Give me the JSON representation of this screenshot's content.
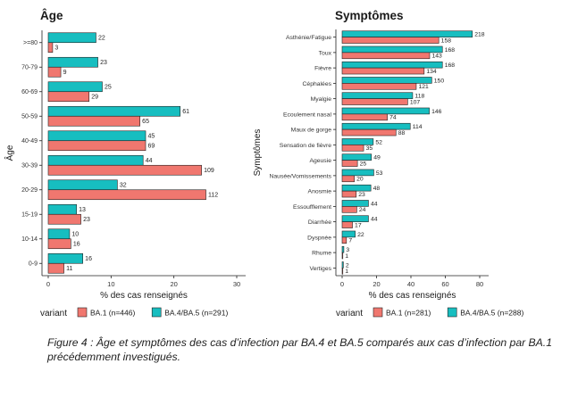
{
  "colors": {
    "ba1": "#F0776F",
    "ba45": "#17BEC0",
    "bar_stroke": "#222222",
    "axis": "#222222",
    "text": "#1a1a1a"
  },
  "chart_data": [
    {
      "type": "bar",
      "orientation": "horizontal",
      "title": "Âge",
      "xlabel": "% des cas renseignés",
      "ylabel": "Âge",
      "xlim": [
        0,
        30
      ],
      "xticks": [
        0,
        10,
        20,
        30
      ],
      "grid": false,
      "categories": [
        ">=80",
        "70-79",
        "60-69",
        "50-59",
        "40-49",
        "30-39",
        "20-29",
        "15-19",
        "10-14",
        "0-9"
      ],
      "series": [
        {
          "name": "BA.4/BA.5 (n=291)",
          "color": "#17BEC0",
          "values": [
            7.6,
            7.9,
            8.6,
            21.0,
            15.5,
            15.1,
            11.0,
            4.5,
            3.4,
            5.5
          ],
          "labels": [
            22,
            23,
            25,
            61,
            45,
            44,
            32,
            13,
            10,
            16
          ]
        },
        {
          "name": "BA.1 (n=446)",
          "color": "#F0776F",
          "values": [
            0.7,
            2.0,
            6.5,
            14.6,
            15.5,
            24.4,
            25.1,
            5.2,
            3.6,
            2.5
          ],
          "labels": [
            3,
            9,
            29,
            65,
            69,
            109,
            112,
            23,
            16,
            11
          ]
        }
      ],
      "legend": {
        "title": "variant",
        "position": "bottom",
        "items": [
          "BA.1 (n=446)",
          "BA.4/BA.5 (n=291)"
        ]
      }
    },
    {
      "type": "bar",
      "orientation": "horizontal",
      "title": "Symptômes",
      "xlabel": "% des cas renseignés",
      "ylabel": "Symptômes",
      "xlim": [
        0,
        80
      ],
      "xticks": [
        0,
        20,
        40,
        60,
        80
      ],
      "grid": false,
      "categories": [
        "Asthénie/Fatigue",
        "Toux",
        "Fièvre",
        "Céphalées",
        "Myalgie",
        "Ecoulement nasal",
        "Maux de gorge",
        "Sensation de fièvre",
        "Ageusie",
        "Nausée/Vomissements",
        "Anosmie",
        "Essoufflement",
        "Diarrhée",
        "Dyspnée",
        "Rhume",
        "Vertiges"
      ],
      "series": [
        {
          "name": "BA.4/BA.5 (n=288)",
          "color": "#17BEC0",
          "values": [
            75.7,
            58.3,
            58.3,
            52.1,
            41.0,
            50.7,
            39.6,
            18.1,
            17.0,
            18.4,
            16.7,
            15.3,
            15.3,
            7.6,
            1.0,
            0.7
          ],
          "labels": [
            218,
            168,
            168,
            150,
            118,
            146,
            114,
            52,
            49,
            53,
            48,
            44,
            44,
            22,
            3,
            2
          ]
        },
        {
          "name": "BA.1 (n=281)",
          "color": "#F0776F",
          "values": [
            56.2,
            50.9,
            47.7,
            43.1,
            38.1,
            26.3,
            31.3,
            12.5,
            8.9,
            7.1,
            8.2,
            8.5,
            6.0,
            2.5,
            0.4,
            0.4
          ],
          "labels": [
            158,
            143,
            134,
            121,
            107,
            74,
            88,
            35,
            25,
            20,
            23,
            24,
            17,
            7,
            1,
            1
          ]
        }
      ],
      "legend": {
        "title": "variant",
        "position": "bottom",
        "items": [
          "BA.1 (n=281)",
          "BA.4/BA.5 (n=288)"
        ]
      }
    }
  ],
  "caption": "Figure 4 : Âge et symptômes des cas d’infection par BA.4 et BA.5 comparés aux cas d’infection par BA.1 précédemment investigués."
}
